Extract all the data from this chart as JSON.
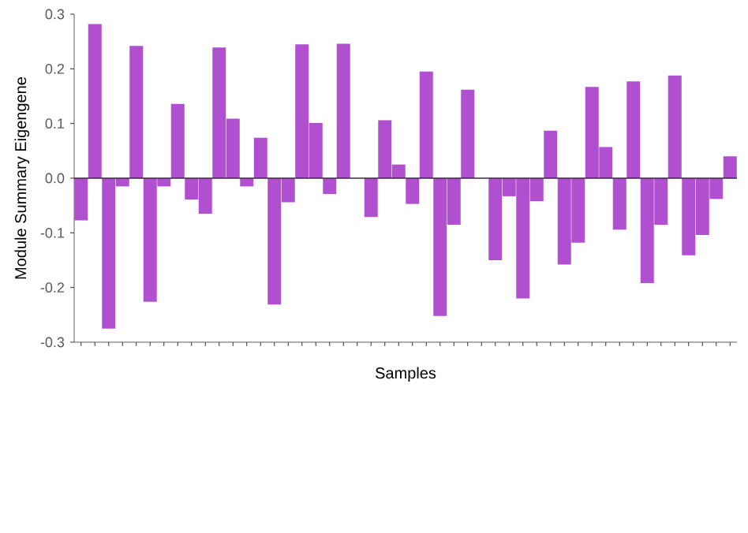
{
  "chart_data": {
    "type": "bar",
    "xlabel": "Samples",
    "ylabel": "Module Summary Eigengene",
    "categories": [
      null,
      null,
      null,
      null,
      null,
      null,
      null,
      null,
      null,
      null,
      null,
      null,
      null,
      null,
      null,
      null,
      null,
      null,
      null,
      null,
      null,
      null,
      null,
      null,
      null,
      null,
      null,
      null,
      null,
      null,
      null,
      null,
      null,
      null,
      null,
      null,
      null,
      null,
      null,
      null,
      null,
      null,
      null,
      null,
      null,
      null,
      null,
      null
    ],
    "values": [
      -0.077,
      0.282,
      -0.275,
      -0.015,
      0.242,
      -0.226,
      -0.015,
      0.136,
      -0.039,
      -0.065,
      0.239,
      0.109,
      -0.015,
      0.074,
      -0.231,
      -0.044,
      0.245,
      0.101,
      -0.029,
      0.246,
      null,
      -0.071,
      0.106,
      0.025,
      -0.047,
      0.195,
      -0.252,
      -0.085,
      0.162,
      null,
      -0.15,
      -0.033,
      -0.22,
      -0.042,
      0.087,
      -0.158,
      -0.118,
      0.167,
      0.057,
      -0.094,
      0.177,
      -0.192,
      -0.085,
      0.188,
      -0.141,
      -0.104,
      -0.038,
      0.04
    ],
    "color": "#b04fcf",
    "ylim": [
      -0.3,
      0.3
    ],
    "yticks": [
      -0.3,
      -0.2,
      -0.1,
      {
        "value": 0,
        "label": "0.0"
      },
      0.1,
      0.2,
      0.3
    ],
    "ref_lines": [
      {
        "axis": "y",
        "value": 0,
        "color": "#3a2a40"
      }
    ],
    "grid": false
  }
}
